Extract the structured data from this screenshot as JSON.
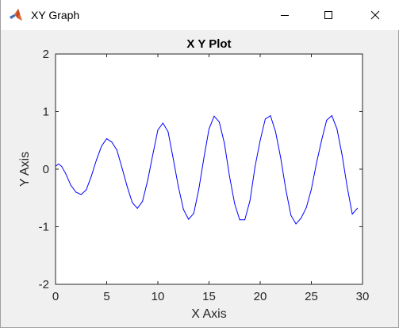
{
  "window": {
    "title": "XY Graph",
    "icon": "matlab-logo-icon",
    "controls": [
      "minimize-icon",
      "maximize-icon",
      "close-icon"
    ]
  },
  "chart_data": {
    "type": "line",
    "title": "X Y Plot",
    "xlabel": "X Axis",
    "ylabel": "Y Axis",
    "xlim": [
      0,
      30
    ],
    "ylim": [
      -2,
      2
    ],
    "xticks": [
      0,
      5,
      10,
      15,
      20,
      25,
      30
    ],
    "yticks": [
      -2,
      -1,
      0,
      1,
      2
    ],
    "grid": false,
    "series": [
      {
        "color": "#0000ff",
        "x": [
          0,
          0.3,
          0.6,
          1.0,
          1.5,
          2.0,
          2.5,
          3.0,
          3.5,
          4.0,
          4.5,
          5.0,
          5.5,
          6.0,
          6.5,
          7.0,
          7.5,
          8.0,
          8.5,
          9.0,
          9.5,
          10.0,
          10.5,
          11.0,
          11.5,
          12.0,
          12.5,
          13.0,
          13.5,
          14.0,
          14.5,
          15.0,
          15.5,
          16.0,
          16.5,
          17.0,
          17.5,
          18.0,
          18.5,
          19.0,
          19.5,
          20.0,
          20.5,
          21.0,
          21.5,
          22.0,
          22.5,
          23.0,
          23.5,
          24.0,
          24.5,
          25.0,
          25.5,
          26.0,
          26.5,
          27.0,
          27.5,
          28.0,
          28.5,
          29.0,
          29.5
        ],
        "y": [
          0.05,
          0.09,
          0.05,
          -0.08,
          -0.28,
          -0.4,
          -0.44,
          -0.36,
          -0.12,
          0.16,
          0.4,
          0.53,
          0.47,
          0.33,
          0.02,
          -0.3,
          -0.58,
          -0.68,
          -0.56,
          -0.2,
          0.25,
          0.68,
          0.8,
          0.65,
          0.18,
          -0.3,
          -0.7,
          -0.87,
          -0.77,
          -0.35,
          0.2,
          0.7,
          0.92,
          0.82,
          0.45,
          -0.12,
          -0.6,
          -0.88,
          -0.88,
          -0.55,
          0.05,
          0.5,
          0.87,
          0.93,
          0.65,
          0.2,
          -0.35,
          -0.8,
          -0.95,
          -0.85,
          -0.67,
          -0.35,
          0.1,
          0.5,
          0.85,
          0.93,
          0.7,
          0.25,
          -0.3,
          -0.78,
          -0.68
        ]
      }
    ]
  }
}
